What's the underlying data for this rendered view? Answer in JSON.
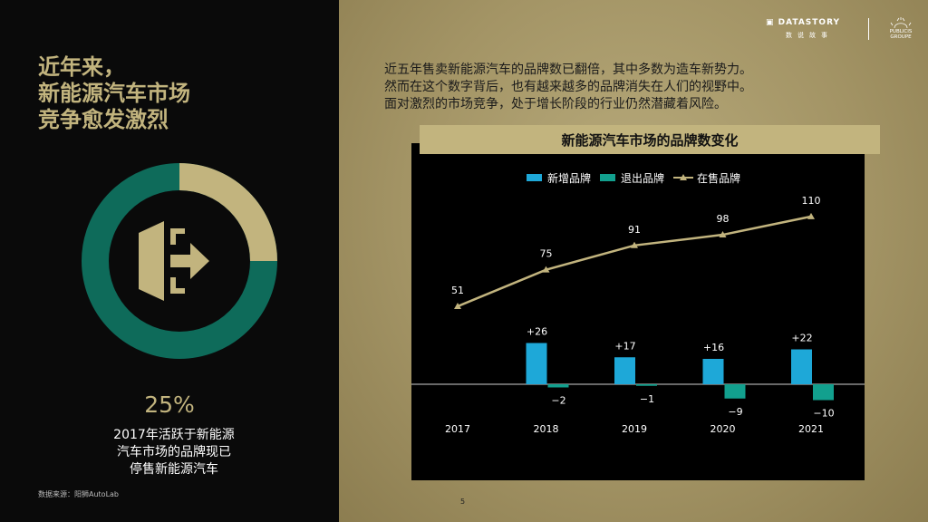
{
  "left": {
    "title_lines": [
      "近年来，",
      "新能源汽车市场",
      "竞争愈发激烈"
    ],
    "percent": "25%",
    "percent_value": 25,
    "desc_lines": [
      "2017年活跃于新能源",
      "汽车市场的品牌现已",
      "停售新能源汽车"
    ],
    "source": "数据来源：阳狮AutoLab",
    "icon": "exit-arrow-icon"
  },
  "logos": {
    "datastory": "DATASTORY",
    "datastory_sub": "数说故事",
    "publicis_line1": "PUBLICIS",
    "publicis_line2": "GROUPE"
  },
  "intro_lines": [
    "近五年售卖新能源汽车的品牌数已翻倍，其中多数为造车新势力。",
    "然而在这个数字背后，也有越来越多的品牌消失在人们的视野中。",
    "面对激烈的市场竞争，处于增长阶段的行业仍然潜藏着风险。"
  ],
  "page_number": "5",
  "colors": {
    "gold": "#c2b47e",
    "teal": "#0e6b5a",
    "new_brand": "#1ea8d8",
    "exit_brand": "#12a08e"
  },
  "chart_data": {
    "type": "bar",
    "title": "新能源汽车市场的品牌数变化",
    "categories": [
      "2017",
      "2018",
      "2019",
      "2020",
      "2021"
    ],
    "series": [
      {
        "name": "新增品牌",
        "type": "bar",
        "values": [
          null,
          26,
          17,
          16,
          22
        ],
        "labels": [
          "",
          "+26",
          "+17",
          "+16",
          "+22"
        ]
      },
      {
        "name": "退出品牌",
        "type": "bar",
        "values": [
          null,
          -2,
          -1,
          -9,
          -10
        ],
        "labels": [
          "",
          "−2",
          "−1",
          "−9",
          "−10"
        ]
      },
      {
        "name": "在售品牌",
        "type": "line",
        "values": [
          51,
          75,
          91,
          98,
          110
        ],
        "labels": [
          "51",
          "75",
          "91",
          "98",
          "110"
        ]
      }
    ],
    "legend": "top",
    "grid": false
  }
}
